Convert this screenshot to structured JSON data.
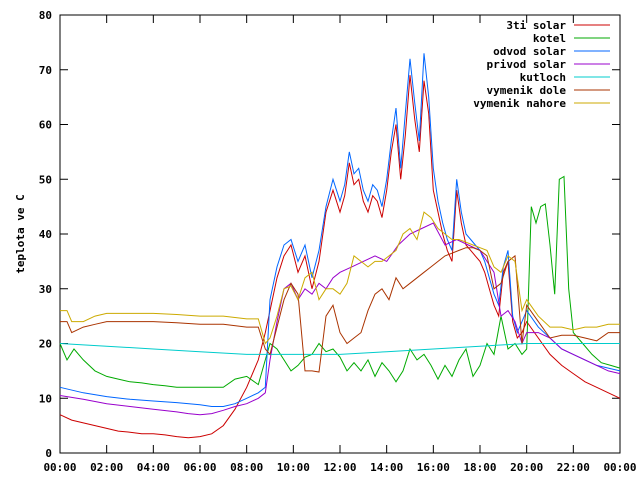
{
  "chart_data": {
    "type": "line",
    "title": "",
    "xlabel": "",
    "ylabel": "teplota ve C",
    "xlim": [
      0,
      24
    ],
    "ylim": [
      0,
      80
    ],
    "x_ticks": [
      "00:00",
      "02:00",
      "04:00",
      "06:00",
      "08:00",
      "10:00",
      "12:00",
      "14:00",
      "16:00",
      "18:00",
      "20:00",
      "22:00",
      "00:00"
    ],
    "y_ticks": [
      "0",
      "10",
      "20",
      "30",
      "40",
      "50",
      "60",
      "70",
      "80"
    ],
    "grid": false,
    "legend_position": "top-right",
    "series": [
      {
        "name": "3ti solar",
        "color": "#cc0000",
        "x": [
          0,
          0.5,
          1,
          1.5,
          2,
          2.5,
          3,
          3.5,
          4,
          4.5,
          5,
          5.5,
          6,
          6.5,
          7,
          7.5,
          8,
          8.5,
          8.8,
          9,
          9.3,
          9.6,
          9.9,
          10.2,
          10.5,
          10.8,
          11.1,
          11.4,
          11.7,
          12,
          12.2,
          12.4,
          12.6,
          12.8,
          13,
          13.2,
          13.4,
          13.6,
          13.8,
          14,
          14.2,
          14.4,
          14.6,
          14.8,
          15,
          15.2,
          15.4,
          15.6,
          15.8,
          16,
          16.2,
          16.4,
          16.6,
          16.8,
          17,
          17.2,
          17.4,
          17.6,
          17.8,
          18,
          18.2,
          18.4,
          18.6,
          18.8,
          19,
          19.2,
          19.4,
          19.6,
          19.8,
          20,
          20.5,
          21,
          21.5,
          22,
          22.5,
          23,
          23.5,
          24
        ],
        "y": [
          7,
          6,
          5.5,
          5,
          4.5,
          4,
          3.8,
          3.5,
          3.5,
          3.3,
          3,
          2.8,
          3,
          3.5,
          5,
          8,
          12,
          17,
          22,
          26,
          32,
          36,
          38,
          33,
          36,
          30,
          35,
          44,
          48,
          44,
          47,
          53,
          49,
          50,
          46,
          44,
          47,
          46,
          43,
          48,
          55,
          60,
          50,
          58,
          69,
          61,
          55,
          68,
          62,
          48,
          44,
          40,
          37,
          35,
          48,
          42,
          38,
          37,
          36,
          35,
          33,
          30,
          27,
          25,
          33,
          35,
          24,
          21,
          22,
          24,
          21,
          18,
          16,
          14.5,
          13,
          12,
          11,
          10
        ]
      },
      {
        "name": "kotel",
        "color": "#00aa00",
        "x": [
          0,
          0.3,
          0.6,
          1,
          1.5,
          2,
          2.5,
          3,
          3.5,
          4,
          4.5,
          5,
          5.5,
          6,
          6.5,
          7,
          7.5,
          8,
          8.5,
          8.8,
          9,
          9.3,
          9.6,
          9.9,
          10.2,
          10.5,
          10.8,
          11.1,
          11.4,
          11.7,
          12,
          12.3,
          12.6,
          12.9,
          13.2,
          13.5,
          13.8,
          14.1,
          14.4,
          14.7,
          15,
          15.3,
          15.6,
          15.9,
          16.2,
          16.5,
          16.8,
          17.1,
          17.4,
          17.7,
          18,
          18.3,
          18.6,
          18.9,
          19.2,
          19.5,
          19.8,
          20,
          20.2,
          20.4,
          20.6,
          20.8,
          21,
          21.2,
          21.4,
          21.6,
          21.8,
          22,
          22.4,
          22.8,
          23.2,
          23.6,
          24
        ],
        "y": [
          20,
          17,
          19,
          17,
          15,
          14,
          13.5,
          13,
          12.8,
          12.5,
          12.3,
          12,
          12,
          12,
          12,
          12,
          13.5,
          14,
          12.5,
          17,
          20,
          19,
          17,
          15,
          16,
          17.5,
          18,
          20,
          18.5,
          19,
          17.5,
          15,
          16.5,
          15,
          17,
          14,
          16.5,
          15,
          13,
          15,
          19,
          17,
          18,
          16,
          13.5,
          16,
          14,
          17,
          19,
          14,
          16,
          20,
          18,
          25,
          19,
          20,
          18,
          19,
          45,
          42,
          45,
          45.5,
          38,
          29,
          50,
          50.5,
          30,
          22,
          20,
          18,
          16.5,
          16,
          15.5
        ]
      },
      {
        "name": "odvod solar",
        "color": "#0066ff",
        "x": [
          0,
          1,
          2,
          3,
          4,
          5,
          6,
          6.5,
          7,
          7.5,
          8,
          8.5,
          8.8,
          9,
          9.3,
          9.6,
          9.9,
          10.2,
          10.5,
          10.8,
          11.1,
          11.4,
          11.7,
          12,
          12.2,
          12.4,
          12.6,
          12.8,
          13,
          13.2,
          13.4,
          13.6,
          13.8,
          14,
          14.2,
          14.4,
          14.6,
          14.8,
          15,
          15.2,
          15.4,
          15.6,
          15.8,
          16,
          16.2,
          16.4,
          16.6,
          16.8,
          17,
          17.2,
          17.4,
          17.6,
          17.8,
          18,
          18.2,
          18.4,
          18.6,
          18.8,
          19,
          19.2,
          19.4,
          19.6,
          19.8,
          20,
          20.5,
          21,
          21.5,
          22,
          22.5,
          23,
          23.5,
          24
        ],
        "y": [
          12,
          11,
          10.3,
          9.8,
          9.5,
          9.2,
          8.8,
          8.5,
          8.5,
          9,
          10,
          11,
          12,
          28,
          34,
          38,
          39,
          35,
          38,
          32,
          37,
          45,
          50,
          46,
          49,
          55,
          51,
          52,
          48,
          46,
          49,
          48,
          45,
          50,
          57,
          63,
          52,
          62,
          72,
          64,
          57,
          73,
          65,
          52,
          46,
          42,
          39,
          37,
          50,
          44,
          40,
          39,
          38,
          37,
          35,
          32,
          29,
          27,
          34,
          37,
          25,
          22,
          24,
          26,
          23,
          21,
          19,
          18,
          17,
          16,
          15.5,
          15
        ]
      },
      {
        "name": "privod solar",
        "color": "#9900cc",
        "x": [
          0,
          1,
          2,
          3,
          4,
          5,
          5.5,
          6,
          6.5,
          7,
          7.5,
          8,
          8.5,
          8.8,
          9,
          9.3,
          9.6,
          9.9,
          10.2,
          10.5,
          10.8,
          11.1,
          11.4,
          11.7,
          12,
          12.5,
          13,
          13.5,
          14,
          14.5,
          15,
          15.5,
          16,
          16.5,
          17,
          17.5,
          18,
          18.3,
          18.6,
          18.9,
          19.2,
          19.5,
          19.8,
          20,
          20.5,
          21,
          21.5,
          22,
          22.5,
          23,
          23.5,
          24
        ],
        "y": [
          10.5,
          9.8,
          9,
          8.5,
          8,
          7.5,
          7.2,
          7,
          7.2,
          7.8,
          8.5,
          9,
          10,
          11,
          17,
          24,
          30,
          31,
          28,
          30,
          29,
          31,
          30,
          32,
          33,
          34,
          35,
          36,
          35,
          38,
          40,
          41,
          42,
          38,
          39,
          38,
          37,
          35,
          33,
          25,
          26,
          24,
          20,
          22,
          22,
          21,
          19,
          18,
          17,
          16,
          15,
          14.5
        ]
      },
      {
        "name": "kutloch",
        "color": "#00cccc",
        "x": [
          0,
          2,
          4,
          6,
          8,
          10,
          12,
          14,
          16,
          18,
          20,
          22,
          24
        ],
        "y": [
          20,
          19.5,
          19,
          18.5,
          18,
          18,
          18,
          18.5,
          19,
          19.5,
          20,
          20,
          20
        ]
      },
      {
        "name": "vymenik dole",
        "color": "#aa3300",
        "x": [
          0,
          0.3,
          0.5,
          1,
          1.5,
          2,
          3,
          4,
          5,
          6,
          7,
          8,
          8.5,
          8.8,
          9,
          9.3,
          9.6,
          9.9,
          10.2,
          10.5,
          10.8,
          11.1,
          11.4,
          11.7,
          12,
          12.3,
          12.6,
          12.9,
          13.2,
          13.5,
          13.8,
          14.1,
          14.4,
          14.7,
          15,
          15.3,
          15.6,
          15.9,
          16.2,
          16.5,
          16.8,
          17.1,
          17.4,
          17.7,
          18,
          18.3,
          18.6,
          18.9,
          19.2,
          19.5,
          19.8,
          20,
          20.5,
          21,
          21.5,
          22,
          22.5,
          23,
          23.5,
          24
        ],
        "y": [
          24,
          24,
          22,
          23,
          23.5,
          24,
          24,
          24,
          23.8,
          23.5,
          23.5,
          23,
          23,
          19,
          18,
          23,
          28,
          31,
          29,
          15,
          15,
          14.8,
          25,
          27,
          22,
          20,
          21,
          22,
          26,
          29,
          30,
          28,
          32,
          30,
          31,
          32,
          33,
          34,
          35,
          36,
          36.5,
          37,
          37.5,
          37.5,
          37,
          36,
          30,
          31,
          35,
          36,
          20,
          27,
          24,
          21,
          21.5,
          21.5,
          21,
          20.5,
          22,
          22
        ]
      },
      {
        "name": "vymenik nahore",
        "color": "#ccaa00",
        "x": [
          0,
          0.3,
          0.5,
          1,
          1.5,
          2,
          3,
          4,
          5,
          6,
          7,
          8,
          8.5,
          8.8,
          9,
          9.3,
          9.6,
          9.9,
          10.2,
          10.5,
          10.8,
          11.1,
          11.4,
          11.7,
          12,
          12.3,
          12.6,
          12.9,
          13.2,
          13.5,
          13.8,
          14.1,
          14.4,
          14.7,
          15,
          15.3,
          15.6,
          15.9,
          16.2,
          16.5,
          16.8,
          17.1,
          17.4,
          17.7,
          18,
          18.3,
          18.6,
          18.9,
          19.2,
          19.5,
          19.8,
          20,
          20.5,
          21,
          21.5,
          22,
          22.5,
          23,
          23.5,
          24
        ],
        "y": [
          26,
          26,
          24,
          24,
          25,
          25.5,
          25.5,
          25.5,
          25.3,
          25,
          25,
          24.5,
          24.5,
          20,
          21,
          25,
          30,
          30.5,
          28,
          32,
          33,
          28,
          30,
          30,
          29,
          31,
          36,
          35,
          34,
          35,
          35,
          36,
          37,
          40,
          41,
          39,
          44,
          43,
          41,
          40,
          39,
          39,
          38.5,
          38,
          37.5,
          37,
          34,
          33,
          36,
          35,
          26,
          28,
          25,
          23,
          23,
          22.5,
          23,
          23,
          23.5,
          23.5
        ]
      }
    ]
  }
}
